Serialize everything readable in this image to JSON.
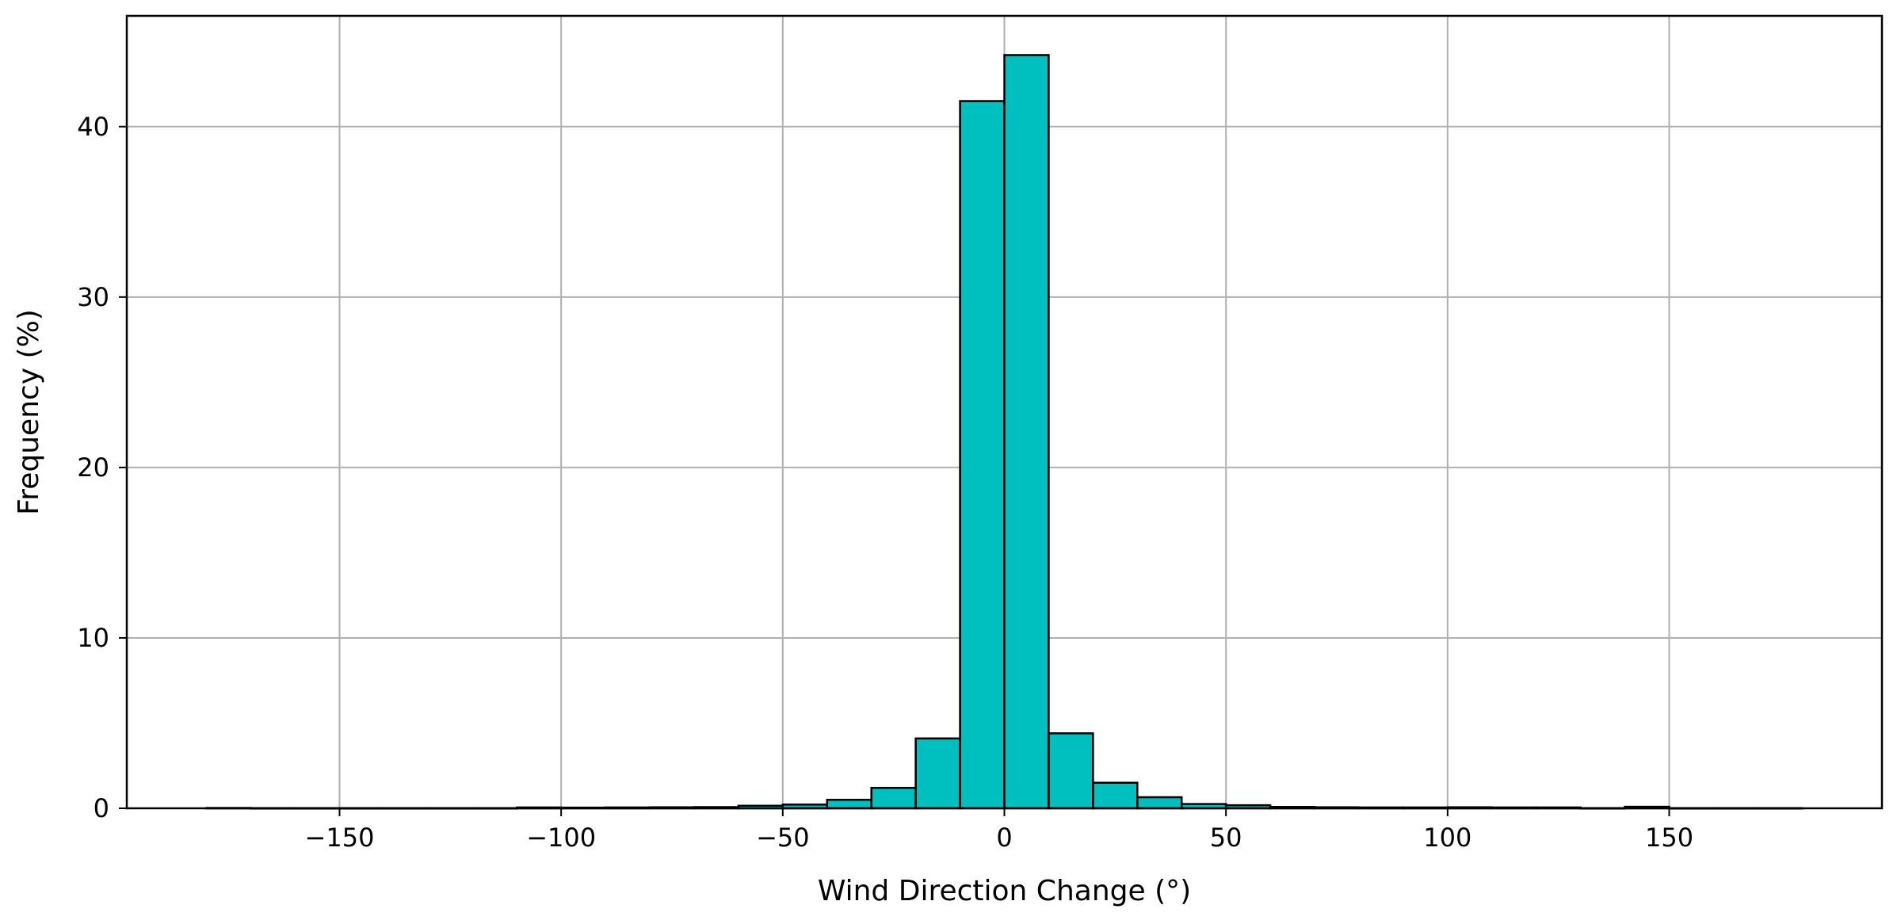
{
  "chart_data": {
    "type": "bar",
    "title": "",
    "xlabel": "Wind Direction Change (°)",
    "ylabel": "Frequency (%)",
    "xlim": [
      -198,
      198
    ],
    "ylim": [
      0,
      46.5
    ],
    "xticks": [
      -150,
      -100,
      -50,
      0,
      50,
      100,
      150
    ],
    "yticks": [
      0,
      10,
      20,
      30,
      40
    ],
    "xtick_labels": [
      "−150",
      "−100",
      "−50",
      "0",
      "50",
      "100",
      "150"
    ],
    "ytick_labels": [
      "0",
      "10",
      "20",
      "30",
      "40"
    ],
    "grid": true,
    "bar_color": "#00bfbf",
    "bin_width": 10,
    "bins": [
      {
        "x0": -180,
        "x1": -170,
        "value": 0.02
      },
      {
        "x0": -170,
        "x1": -160,
        "value": 0.01
      },
      {
        "x0": -160,
        "x1": -150,
        "value": 0.01
      },
      {
        "x0": -150,
        "x1": -140,
        "value": 0.01
      },
      {
        "x0": -140,
        "x1": -130,
        "value": 0.01
      },
      {
        "x0": -130,
        "x1": -120,
        "value": 0.01
      },
      {
        "x0": -120,
        "x1": -110,
        "value": 0.01
      },
      {
        "x0": -110,
        "x1": -100,
        "value": 0.05
      },
      {
        "x0": -100,
        "x1": -90,
        "value": 0.04
      },
      {
        "x0": -90,
        "x1": -80,
        "value": 0.05
      },
      {
        "x0": -80,
        "x1": -70,
        "value": 0.06
      },
      {
        "x0": -70,
        "x1": -60,
        "value": 0.07
      },
      {
        "x0": -60,
        "x1": -50,
        "value": 0.15
      },
      {
        "x0": -50,
        "x1": -40,
        "value": 0.22
      },
      {
        "x0": -40,
        "x1": -30,
        "value": 0.5
      },
      {
        "x0": -30,
        "x1": -20,
        "value": 1.2
      },
      {
        "x0": -20,
        "x1": -10,
        "value": 4.1
      },
      {
        "x0": -10,
        "x1": 0,
        "value": 41.5
      },
      {
        "x0": 0,
        "x1": 10,
        "value": 44.2
      },
      {
        "x0": 10,
        "x1": 20,
        "value": 4.4
      },
      {
        "x0": 20,
        "x1": 30,
        "value": 1.5
      },
      {
        "x0": 30,
        "x1": 40,
        "value": 0.65
      },
      {
        "x0": 40,
        "x1": 50,
        "value": 0.25
      },
      {
        "x0": 50,
        "x1": 60,
        "value": 0.18
      },
      {
        "x0": 60,
        "x1": 70,
        "value": 0.08
      },
      {
        "x0": 70,
        "x1": 80,
        "value": 0.06
      },
      {
        "x0": 80,
        "x1": 90,
        "value": 0.05
      },
      {
        "x0": 90,
        "x1": 100,
        "value": 0.05
      },
      {
        "x0": 100,
        "x1": 110,
        "value": 0.06
      },
      {
        "x0": 110,
        "x1": 120,
        "value": 0.05
      },
      {
        "x0": 120,
        "x1": 130,
        "value": 0.05
      },
      {
        "x0": 130,
        "x1": 140,
        "value": 0.01
      },
      {
        "x0": 140,
        "x1": 150,
        "value": 0.09
      },
      {
        "x0": 150,
        "x1": 160,
        "value": 0.01
      },
      {
        "x0": 160,
        "x1": 170,
        "value": 0.01
      },
      {
        "x0": 170,
        "x1": 180,
        "value": 0.01
      }
    ]
  }
}
